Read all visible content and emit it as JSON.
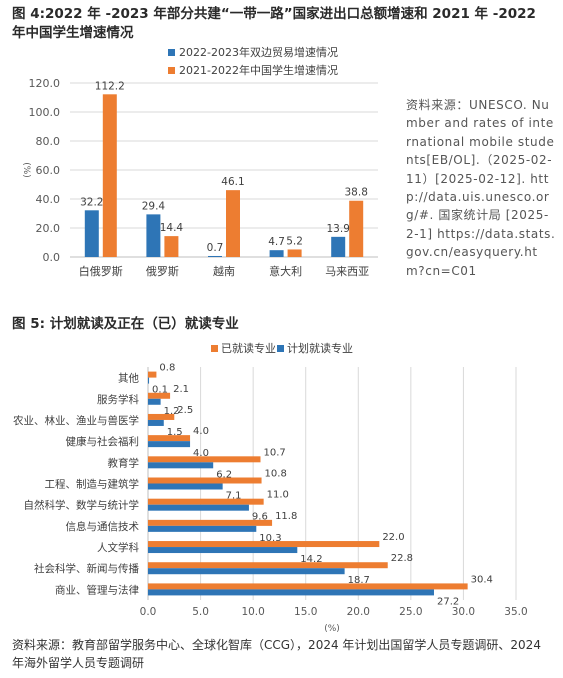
{
  "figure4": {
    "title": "图 4:2022 年 -2023 年部分共建“一带一路”国家进出口总额增速和 2021 年 -2022 年中国学生增速情况",
    "source_note": "资料来源：UNESCO. Number and rates of international mobile students[EB/OL].（2025-02-11）[2025-02-12]. http://data.uis.unesco.org/#. 国家统计局 [2025-2-1] https://data.stats.gov.cn/easyquery.htm?cn=C01",
    "colors": {
      "trade": "#2e75b6",
      "students": "#ed7d31"
    },
    "chart_data": {
      "type": "bar",
      "orientation": "vertical",
      "categories": [
        "白俄罗斯",
        "俄罗斯",
        "越南",
        "意大利",
        "马来西亚"
      ],
      "series": [
        {
          "name": "2022-2023年双边贸易增速情况",
          "values": [
            32.2,
            29.4,
            0.7,
            4.7,
            13.9
          ],
          "labels": [
            "32.2",
            "29.4",
            "0.7",
            "4.7",
            "13.9"
          ]
        },
        {
          "name": "2021-2022年中国学生增速情况",
          "values": [
            112.2,
            14.4,
            46.1,
            5.2,
            38.8
          ],
          "labels": [
            "112.2",
            "14.4",
            "46.1",
            "5.2",
            "38.8"
          ]
        }
      ],
      "ylabel": "(%)",
      "ylim": [
        0,
        120
      ],
      "yticks": [
        0,
        20,
        40,
        60,
        80,
        100,
        120
      ],
      "ytick_labels": [
        "0.0",
        "20.0",
        "40.0",
        "60.0",
        "80.0",
        "100.0",
        "120.0"
      ],
      "grid": true,
      "legend": "top"
    }
  },
  "figure5": {
    "title": "图 5: 计划就读及正在（已）就读专业",
    "colors": {
      "enrolled": "#ed7d31",
      "planned": "#2e75b6"
    },
    "chart_data": {
      "type": "bar",
      "orientation": "horizontal",
      "categories": [
        "其他",
        "服务学科",
        "农业、林业、渔业与兽医学",
        "健康与社会福利",
        "教育学",
        "工程、制造与建筑学",
        "自然科学、数学与统计学",
        "信息与通信技术",
        "人文学科",
        "社会科学、新闻与传播",
        "商业、管理与法律"
      ],
      "series": [
        {
          "name": "已就读专业",
          "values": [
            0.8,
            2.1,
            2.5,
            4.0,
            10.7,
            10.8,
            11.0,
            11.8,
            22.0,
            22.8,
            30.4
          ],
          "labels": [
            "0.8",
            "2.1",
            "2.5",
            "4.0",
            "10.7",
            "10.8",
            "11.0",
            "11.8",
            "22.0",
            "22.8",
            "30.4"
          ]
        },
        {
          "name": "计划就读专业",
          "values": [
            0.1,
            1.2,
            1.5,
            4.0,
            6.2,
            7.1,
            9.6,
            10.3,
            14.2,
            18.7,
            27.2
          ],
          "labels": [
            "0.1",
            "1.2",
            "1.5",
            "4.0",
            "6.2",
            "7.1",
            "9.6",
            "10.3",
            "14.2",
            "18.7",
            "27.2"
          ]
        }
      ],
      "xlabel": "(%)",
      "xlim": [
        0,
        35
      ],
      "xticks": [
        0,
        5,
        10,
        15,
        20,
        25,
        30,
        35
      ],
      "xtick_labels": [
        "0.0",
        "5.0",
        "10.0",
        "15.0",
        "20.0",
        "25.0",
        "30.0",
        "35.0"
      ],
      "grid": true,
      "legend": "top"
    },
    "source_note": "资料来源：教育部留学服务中心、全球化智库（CCG），2024 年计划出国留学人员专题调研、2024 年海外留学人员专题调研"
  }
}
